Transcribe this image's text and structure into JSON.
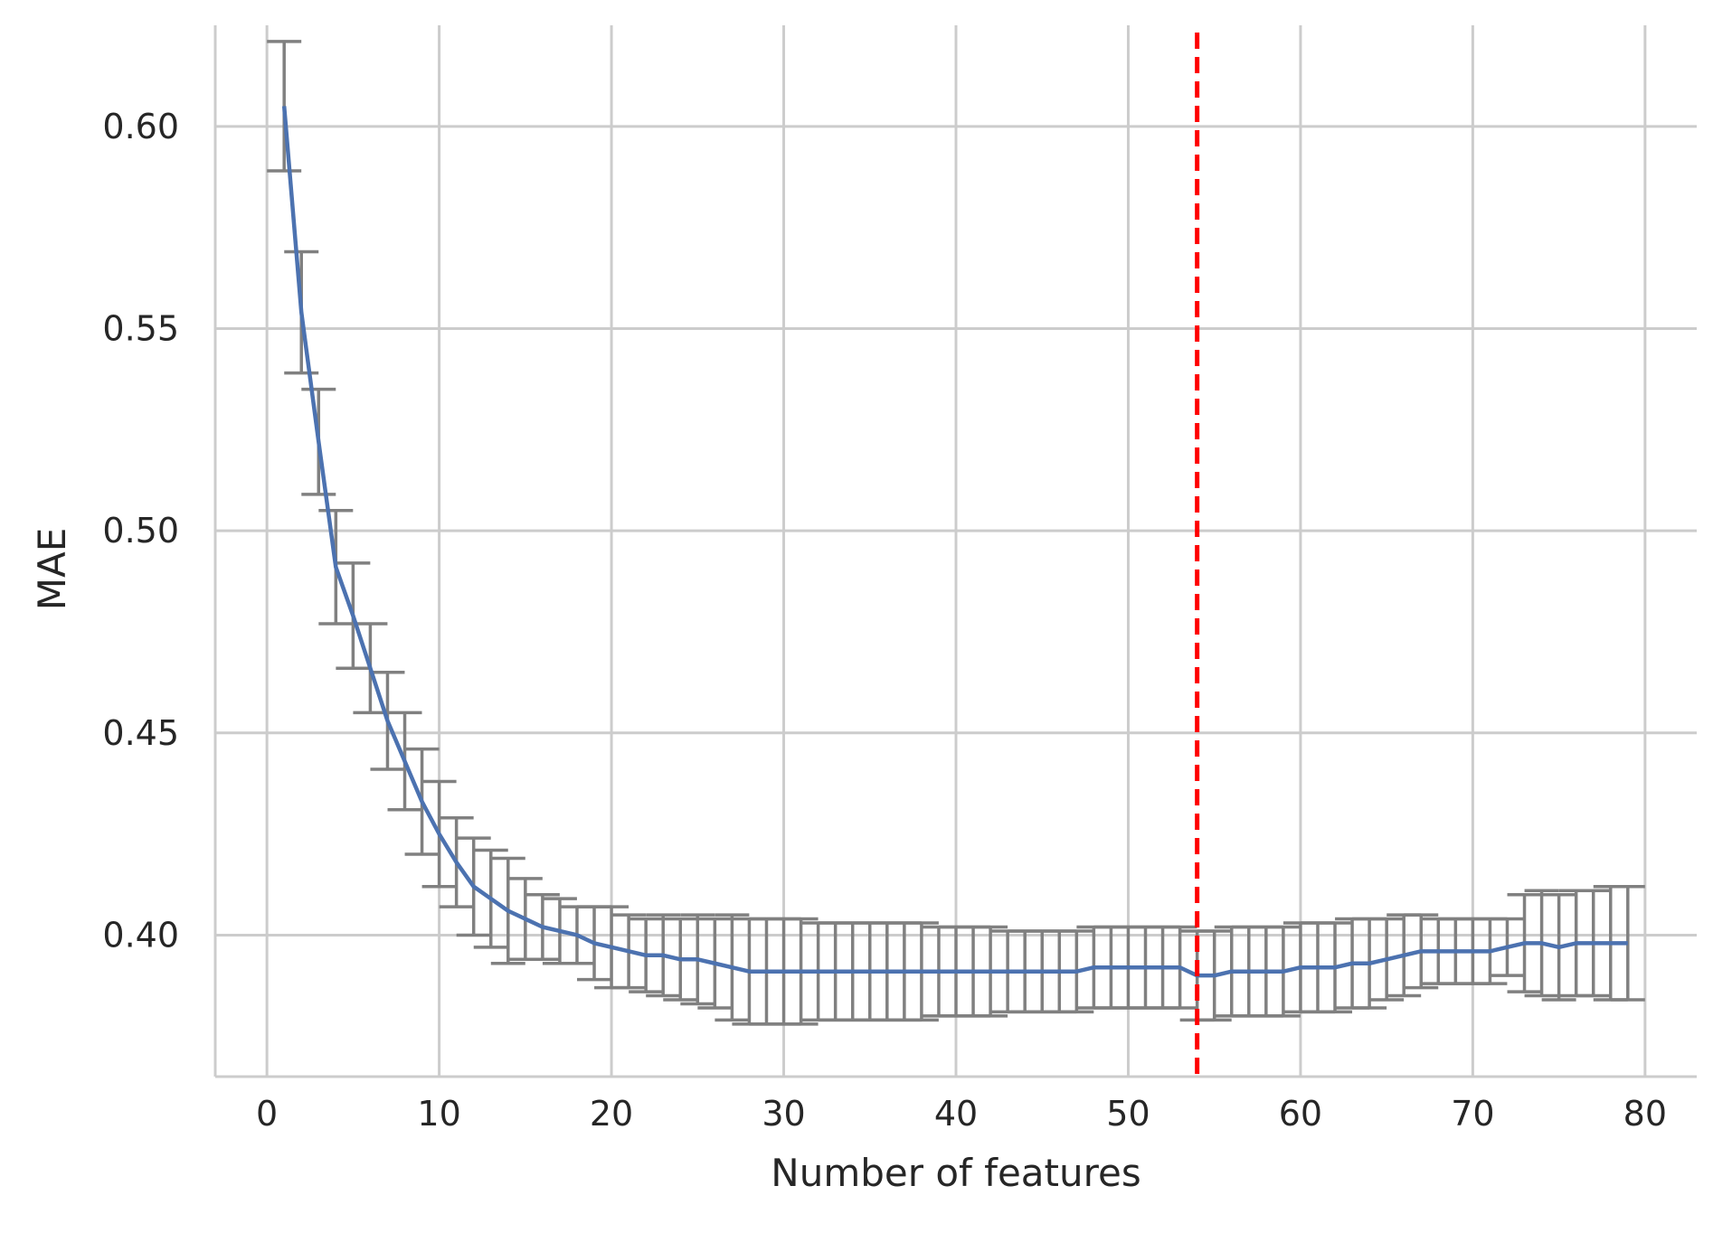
{
  "chart_data": {
    "type": "line",
    "title": "",
    "xlabel": "Number of features",
    "ylabel": "MAE",
    "xlim": [
      -3,
      83
    ],
    "ylim": [
      0.365,
      0.625
    ],
    "grid": true,
    "x_ticks": [
      0,
      10,
      20,
      30,
      40,
      50,
      60,
      70,
      80
    ],
    "x_tick_labels": [
      "0",
      "10",
      "20",
      "30",
      "40",
      "50",
      "60",
      "70",
      "80"
    ],
    "y_ticks": [
      0.4,
      0.45,
      0.5,
      0.55,
      0.6
    ],
    "y_tick_labels": [
      "0.40",
      "0.45",
      "0.50",
      "0.55",
      "0.60"
    ],
    "series": [
      {
        "color": "#4c72b0",
        "errorbar_color": "#808080",
        "x": [
          1,
          2,
          3,
          4,
          5,
          6,
          7,
          8,
          9,
          10,
          11,
          12,
          13,
          14,
          15,
          16,
          17,
          18,
          19,
          20,
          21,
          22,
          23,
          24,
          25,
          26,
          27,
          28,
          29,
          30,
          31,
          32,
          33,
          34,
          35,
          36,
          37,
          38,
          39,
          40,
          41,
          42,
          43,
          44,
          45,
          46,
          47,
          48,
          49,
          50,
          51,
          52,
          53,
          54,
          55,
          56,
          57,
          58,
          59,
          60,
          61,
          62,
          63,
          64,
          65,
          66,
          67,
          68,
          69,
          70,
          71,
          72,
          73,
          74,
          75,
          76,
          77,
          78,
          79
        ],
        "values": [
          0.605,
          0.554,
          0.522,
          0.491,
          0.479,
          0.466,
          0.453,
          0.443,
          0.433,
          0.425,
          0.418,
          0.412,
          0.409,
          0.406,
          0.404,
          0.402,
          0.401,
          0.4,
          0.398,
          0.397,
          0.396,
          0.395,
          0.395,
          0.394,
          0.394,
          0.393,
          0.392,
          0.391,
          0.391,
          0.391,
          0.391,
          0.391,
          0.391,
          0.391,
          0.391,
          0.391,
          0.391,
          0.391,
          0.391,
          0.391,
          0.391,
          0.391,
          0.391,
          0.391,
          0.391,
          0.391,
          0.391,
          0.392,
          0.392,
          0.392,
          0.392,
          0.392,
          0.392,
          0.39,
          0.39,
          0.391,
          0.391,
          0.391,
          0.391,
          0.392,
          0.392,
          0.392,
          0.393,
          0.393,
          0.394,
          0.395,
          0.396,
          0.396,
          0.396,
          0.396,
          0.396,
          0.397,
          0.398,
          0.398,
          0.397,
          0.398,
          0.398,
          0.398,
          0.398
        ],
        "err": [
          0.016,
          0.015,
          0.013,
          0.014,
          0.013,
          0.011,
          0.012,
          0.012,
          0.013,
          0.013,
          0.011,
          0.012,
          0.012,
          0.013,
          0.01,
          0.008,
          0.008,
          0.007,
          0.009,
          0.01,
          0.009,
          0.009,
          0.01,
          0.01,
          0.011,
          0.011,
          0.013,
          0.013,
          0.013,
          0.013,
          0.013,
          0.012,
          0.012,
          0.012,
          0.012,
          0.012,
          0.012,
          0.012,
          0.011,
          0.011,
          0.011,
          0.011,
          0.01,
          0.01,
          0.01,
          0.01,
          0.01,
          0.01,
          0.01,
          0.01,
          0.01,
          0.01,
          0.01,
          0.011,
          0.011,
          0.011,
          0.011,
          0.011,
          0.011,
          0.011,
          0.011,
          0.011,
          0.011,
          0.011,
          0.01,
          0.01,
          0.009,
          0.008,
          0.008,
          0.008,
          0.008,
          0.007,
          0.012,
          0.013,
          0.013,
          0.013,
          0.013,
          0.014,
          0.014
        ]
      }
    ],
    "reference_line": {
      "orientation": "vertical",
      "x": 54,
      "color": "#ff0000",
      "style": "dashed"
    }
  }
}
